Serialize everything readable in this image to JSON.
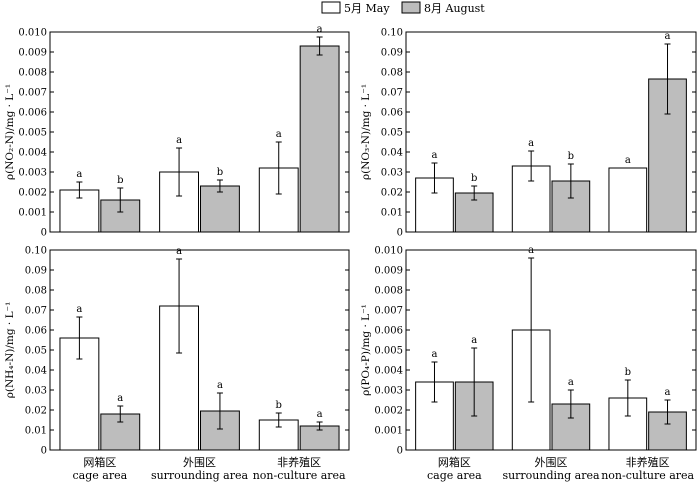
{
  "legend": [
    {
      "label": "5月 May",
      "color": "#ffffff"
    },
    {
      "label": "8月 August",
      "color": "#bdbdbd"
    }
  ],
  "categories": [
    {
      "zh": "网箱区",
      "en": "cage area"
    },
    {
      "zh": "外围区",
      "en": "surrounding area"
    },
    {
      "zh": "非养殖区",
      "en": "non-culture area"
    }
  ],
  "chart_data": [
    {
      "type": "bar",
      "ylabel": "ρ(NO₂-N)/mg · L⁻¹",
      "ylim": [
        0,
        0.01
      ],
      "yticks": [
        0,
        0.001,
        0.002,
        0.003,
        0.004,
        0.005,
        0.006,
        0.007,
        0.008,
        0.009,
        0.01
      ],
      "tick_labels": [
        "0",
        "0.001",
        "0.002",
        "0.003",
        "0.004",
        "0.005",
        "0.006",
        "0.007",
        "0.008",
        "0.009",
        "0.010"
      ],
      "categories": [
        "cage area",
        "surrounding area",
        "non-culture area"
      ],
      "series": [
        {
          "name": "5月 May",
          "values": [
            0.0021,
            0.003,
            0.0032
          ],
          "errors": [
            0.0004,
            0.0012,
            0.0013
          ],
          "sig": [
            "a",
            "a",
            "a"
          ]
        },
        {
          "name": "8月 August",
          "values": [
            0.0016,
            0.0023,
            0.0093
          ],
          "errors": [
            0.0006,
            0.0003,
            0.00045
          ],
          "sig": [
            "b",
            "b",
            "a"
          ]
        }
      ]
    },
    {
      "type": "bar",
      "ylabel": "ρ(NO₃-N)/mg · L⁻¹",
      "ylim": [
        0,
        0.1
      ],
      "yticks": [
        0,
        0.01,
        0.02,
        0.03,
        0.04,
        0.05,
        0.06,
        0.07,
        0.08,
        0.09,
        0.1
      ],
      "tick_labels": [
        "0",
        "0.01",
        "0.02",
        "0.03",
        "0.04",
        "0.05",
        "0.06",
        "0.07",
        "0.08",
        "0.09",
        "0.10"
      ],
      "categories": [
        "cage area",
        "surrounding area",
        "non-culture area"
      ],
      "series": [
        {
          "name": "5月 May",
          "values": [
            0.027,
            0.033,
            0.032
          ],
          "errors": [
            0.0075,
            0.0075,
            0
          ],
          "sig": [
            "a",
            "a",
            "a"
          ]
        },
        {
          "name": "8月 August",
          "values": [
            0.0195,
            0.0255,
            0.0765
          ],
          "errors": [
            0.0035,
            0.0085,
            0.0175
          ],
          "sig": [
            "b",
            "b",
            "a"
          ]
        }
      ]
    },
    {
      "type": "bar",
      "ylabel": "ρ(NH₄-N)/mg · L⁻¹",
      "ylim": [
        0,
        0.1
      ],
      "yticks": [
        0,
        0.01,
        0.02,
        0.03,
        0.04,
        0.05,
        0.06,
        0.07,
        0.08,
        0.09,
        0.1
      ],
      "tick_labels": [
        "0",
        "0.01",
        "0.02",
        "0.03",
        "0.04",
        "0.05",
        "0.06",
        "0.07",
        "0.08",
        "0.09",
        "0.10"
      ],
      "categories": [
        "cage area",
        "surrounding area",
        "non-culture area"
      ],
      "series": [
        {
          "name": "5月 May",
          "values": [
            0.056,
            0.072,
            0.015
          ],
          "errors": [
            0.0105,
            0.0235,
            0.0035
          ],
          "sig": [
            "a",
            "a",
            "b"
          ]
        },
        {
          "name": "8月 August",
          "values": [
            0.018,
            0.0195,
            0.012
          ],
          "errors": [
            0.004,
            0.009,
            0.002
          ],
          "sig": [
            "a",
            "a",
            "a"
          ]
        }
      ]
    },
    {
      "type": "bar",
      "ylabel": "ρ(PO₄-P)/mg · L⁻¹",
      "ylim": [
        0,
        0.01
      ],
      "yticks": [
        0,
        0.001,
        0.002,
        0.003,
        0.004,
        0.005,
        0.006,
        0.007,
        0.008,
        0.009,
        0.01
      ],
      "tick_labels": [
        "0",
        "0.001",
        "0.002",
        "0.003",
        "0.004",
        "0.005",
        "0.006",
        "0.007",
        "0.008",
        "0.009",
        "0.010"
      ],
      "categories": [
        "cage area",
        "surrounding area",
        "non-culture area"
      ],
      "series": [
        {
          "name": "5月 May",
          "values": [
            0.0034,
            0.006,
            0.0026
          ],
          "errors": [
            0.001,
            0.0036,
            0.0009
          ],
          "sig": [
            "a",
            "a",
            "b"
          ]
        },
        {
          "name": "8月 August",
          "values": [
            0.0034,
            0.0023,
            0.0019
          ],
          "errors": [
            0.0017,
            0.0007,
            0.0006
          ],
          "sig": [
            "a",
            "a",
            "a"
          ]
        }
      ]
    }
  ]
}
